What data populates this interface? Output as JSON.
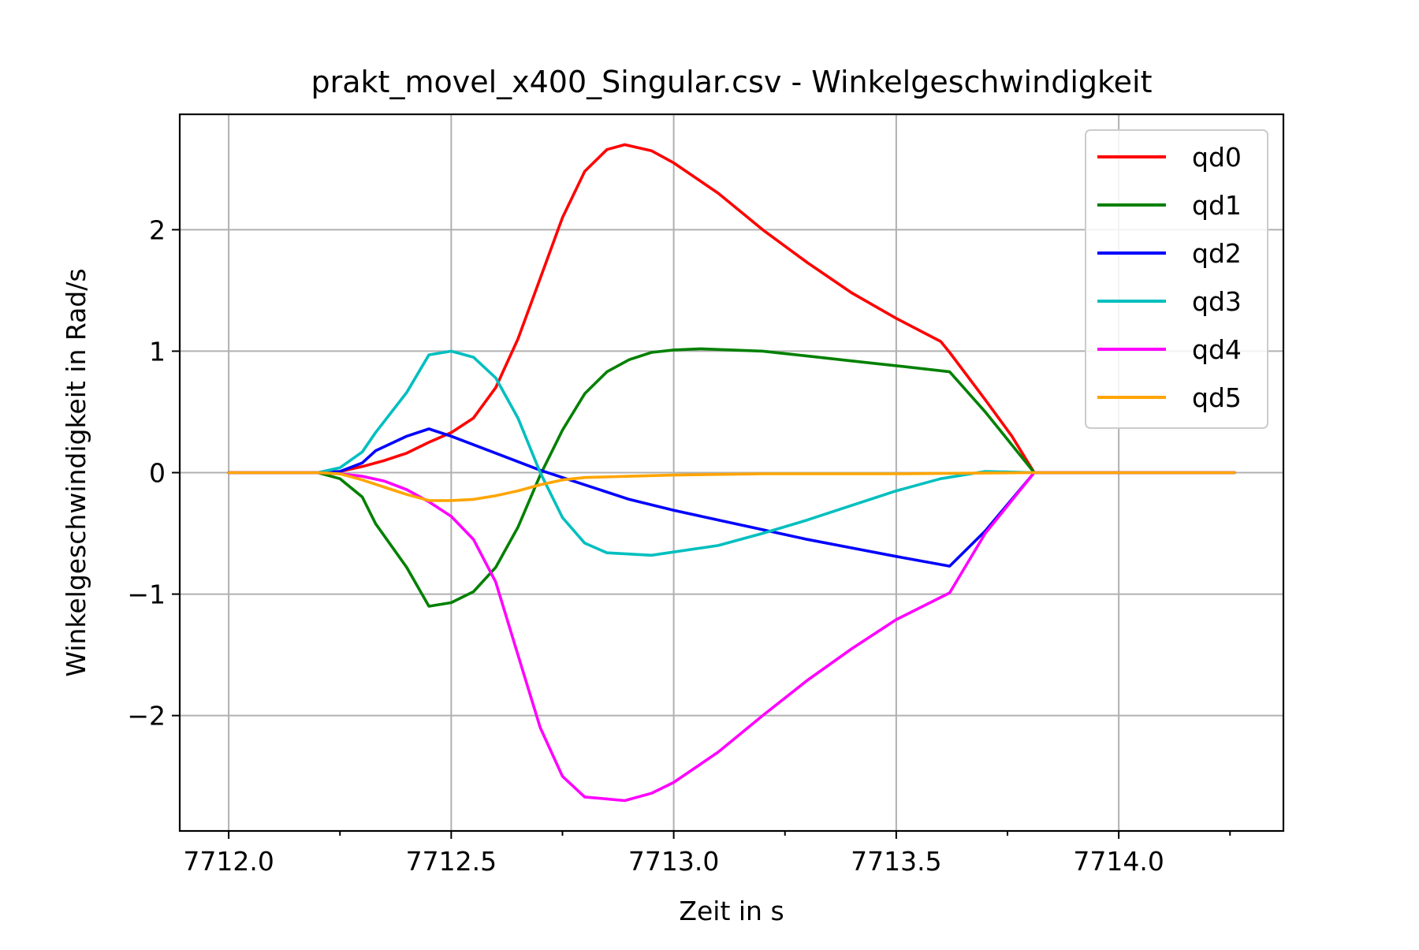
{
  "chart_data": {
    "type": "line",
    "title": "prakt_movel_x400_Singular.csv - Winkelgeschwindigkeit",
    "xlabel": "Zeit in s",
    "ylabel": "Winkelgeschwindigkeit in Rad/s",
    "xlim": [
      7711.89,
      7714.37
    ],
    "ylim": [
      -2.95,
      2.95
    ],
    "grid": true,
    "legend_position": "top-right",
    "x_ticks": [
      {
        "value": 7712.0,
        "label": "7712.0"
      },
      {
        "value": 7712.5,
        "label": "7712.5"
      },
      {
        "value": 7713.0,
        "label": "7713.0"
      },
      {
        "value": 7713.5,
        "label": "7713.5"
      },
      {
        "value": 7714.0,
        "label": "7714.0"
      }
    ],
    "x_minor_ticks": [
      7712.25,
      7712.75,
      7713.25,
      7713.75,
      7714.25
    ],
    "y_ticks": [
      {
        "value": -2,
        "label": "−2"
      },
      {
        "value": -1,
        "label": "−1"
      },
      {
        "value": 0,
        "label": "0"
      },
      {
        "value": 1,
        "label": "1"
      },
      {
        "value": 2,
        "label": "2"
      }
    ],
    "series": [
      {
        "name": "qd0",
        "color": "#ff0000",
        "points": [
          [
            7712.0,
            0
          ],
          [
            7712.2,
            0
          ],
          [
            7712.25,
            0.01
          ],
          [
            7712.3,
            0.05
          ],
          [
            7712.35,
            0.1
          ],
          [
            7712.4,
            0.16
          ],
          [
            7712.45,
            0.25
          ],
          [
            7712.5,
            0.33
          ],
          [
            7712.55,
            0.45
          ],
          [
            7712.6,
            0.7
          ],
          [
            7712.65,
            1.1
          ],
          [
            7712.7,
            1.6
          ],
          [
            7712.75,
            2.1
          ],
          [
            7712.8,
            2.48
          ],
          [
            7712.85,
            2.66
          ],
          [
            7712.89,
            2.7
          ],
          [
            7712.95,
            2.65
          ],
          [
            7713.0,
            2.55
          ],
          [
            7713.1,
            2.3
          ],
          [
            7713.2,
            2.0
          ],
          [
            7713.3,
            1.73
          ],
          [
            7713.4,
            1.48
          ],
          [
            7713.5,
            1.27
          ],
          [
            7713.6,
            1.08
          ],
          [
            7713.62,
            0.99
          ],
          [
            7713.7,
            0.6
          ],
          [
            7713.76,
            0.3
          ],
          [
            7713.81,
            0
          ],
          [
            7714.0,
            0
          ],
          [
            7714.26,
            0
          ]
        ]
      },
      {
        "name": "qd1",
        "color": "#008000",
        "points": [
          [
            7712.0,
            0
          ],
          [
            7712.2,
            0
          ],
          [
            7712.25,
            -0.05
          ],
          [
            7712.3,
            -0.2
          ],
          [
            7712.33,
            -0.42
          ],
          [
            7712.4,
            -0.78
          ],
          [
            7712.45,
            -1.1
          ],
          [
            7712.5,
            -1.07
          ],
          [
            7712.55,
            -0.98
          ],
          [
            7712.6,
            -0.78
          ],
          [
            7712.65,
            -0.45
          ],
          [
            7712.7,
            -0.02
          ],
          [
            7712.75,
            0.35
          ],
          [
            7712.8,
            0.65
          ],
          [
            7712.85,
            0.83
          ],
          [
            7712.9,
            0.93
          ],
          [
            7712.95,
            0.99
          ],
          [
            7713.0,
            1.01
          ],
          [
            7713.06,
            1.02
          ],
          [
            7713.2,
            1.0
          ],
          [
            7713.3,
            0.96
          ],
          [
            7713.4,
            0.92
          ],
          [
            7713.5,
            0.88
          ],
          [
            7713.62,
            0.83
          ],
          [
            7713.7,
            0.5
          ],
          [
            7713.81,
            0
          ],
          [
            7714.0,
            0
          ],
          [
            7714.26,
            0
          ]
        ]
      },
      {
        "name": "qd2",
        "color": "#0000ff",
        "points": [
          [
            7712.0,
            0
          ],
          [
            7712.2,
            0
          ],
          [
            7712.25,
            0.01
          ],
          [
            7712.3,
            0.08
          ],
          [
            7712.33,
            0.18
          ],
          [
            7712.4,
            0.3
          ],
          [
            7712.45,
            0.36
          ],
          [
            7712.5,
            0.3
          ],
          [
            7712.6,
            0.16
          ],
          [
            7712.7,
            0.02
          ],
          [
            7712.8,
            -0.1
          ],
          [
            7712.9,
            -0.22
          ],
          [
            7713.0,
            -0.31
          ],
          [
            7713.1,
            -0.39
          ],
          [
            7713.2,
            -0.47
          ],
          [
            7713.3,
            -0.55
          ],
          [
            7713.4,
            -0.62
          ],
          [
            7713.5,
            -0.69
          ],
          [
            7713.62,
            -0.77
          ],
          [
            7713.7,
            -0.48
          ],
          [
            7713.81,
            0
          ],
          [
            7714.0,
            0
          ],
          [
            7714.26,
            0
          ]
        ]
      },
      {
        "name": "qd3",
        "color": "#00bfbf",
        "points": [
          [
            7712.0,
            0
          ],
          [
            7712.2,
            0
          ],
          [
            7712.25,
            0.04
          ],
          [
            7712.3,
            0.17
          ],
          [
            7712.33,
            0.33
          ],
          [
            7712.4,
            0.66
          ],
          [
            7712.45,
            0.97
          ],
          [
            7712.5,
            1.0
          ],
          [
            7712.55,
            0.95
          ],
          [
            7712.6,
            0.78
          ],
          [
            7712.65,
            0.45
          ],
          [
            7712.7,
            0.0
          ],
          [
            7712.75,
            -0.37
          ],
          [
            7712.8,
            -0.58
          ],
          [
            7712.85,
            -0.66
          ],
          [
            7712.95,
            -0.68
          ],
          [
            7713.1,
            -0.6
          ],
          [
            7713.2,
            -0.5
          ],
          [
            7713.3,
            -0.39
          ],
          [
            7713.4,
            -0.27
          ],
          [
            7713.5,
            -0.15
          ],
          [
            7713.6,
            -0.05
          ],
          [
            7713.7,
            0.01
          ],
          [
            7713.81,
            0
          ],
          [
            7714.0,
            0
          ],
          [
            7714.26,
            0
          ]
        ]
      },
      {
        "name": "qd4",
        "color": "#ff00ff",
        "points": [
          [
            7712.0,
            0
          ],
          [
            7712.2,
            0
          ],
          [
            7712.25,
            -0.01
          ],
          [
            7712.3,
            -0.03
          ],
          [
            7712.35,
            -0.07
          ],
          [
            7712.4,
            -0.14
          ],
          [
            7712.45,
            -0.24
          ],
          [
            7712.5,
            -0.36
          ],
          [
            7712.55,
            -0.55
          ],
          [
            7712.6,
            -0.9
          ],
          [
            7712.65,
            -1.5
          ],
          [
            7712.7,
            -2.1
          ],
          [
            7712.75,
            -2.5
          ],
          [
            7712.8,
            -2.67
          ],
          [
            7712.89,
            -2.7
          ],
          [
            7712.95,
            -2.64
          ],
          [
            7713.0,
            -2.55
          ],
          [
            7713.1,
            -2.3
          ],
          [
            7713.2,
            -2.0
          ],
          [
            7713.3,
            -1.71
          ],
          [
            7713.4,
            -1.45
          ],
          [
            7713.5,
            -1.21
          ],
          [
            7713.62,
            -0.99
          ],
          [
            7713.7,
            -0.5
          ],
          [
            7713.81,
            0
          ],
          [
            7714.0,
            0
          ],
          [
            7714.26,
            0
          ]
        ]
      },
      {
        "name": "qd5",
        "color": "#ffa500",
        "points": [
          [
            7712.0,
            0
          ],
          [
            7712.2,
            0
          ],
          [
            7712.25,
            -0.01
          ],
          [
            7712.3,
            -0.06
          ],
          [
            7712.35,
            -0.12
          ],
          [
            7712.4,
            -0.18
          ],
          [
            7712.45,
            -0.23
          ],
          [
            7712.5,
            -0.23
          ],
          [
            7712.55,
            -0.22
          ],
          [
            7712.6,
            -0.19
          ],
          [
            7712.65,
            -0.15
          ],
          [
            7712.7,
            -0.1
          ],
          [
            7712.75,
            -0.06
          ],
          [
            7712.8,
            -0.04
          ],
          [
            7712.9,
            -0.03
          ],
          [
            7713.0,
            -0.02
          ],
          [
            7713.2,
            -0.01
          ],
          [
            7713.5,
            -0.01
          ],
          [
            7713.81,
            0
          ],
          [
            7714.0,
            0
          ],
          [
            7714.26,
            0
          ]
        ]
      }
    ]
  }
}
